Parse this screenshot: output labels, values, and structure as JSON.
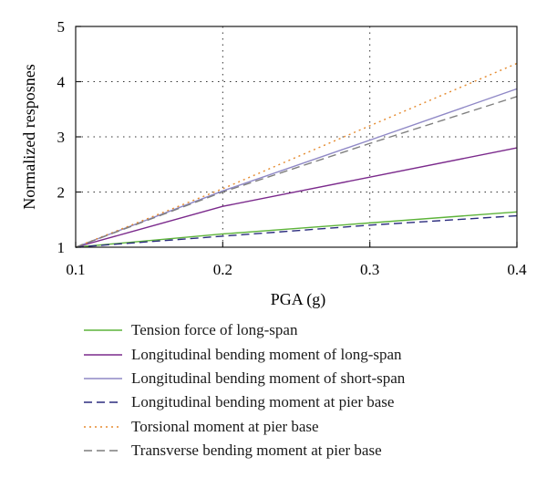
{
  "chart_data": {
    "type": "line",
    "xlabel": "PGA (g)",
    "ylabel": "Normalized resposnes",
    "x": [
      0.1,
      0.2,
      0.3,
      0.4
    ],
    "xticks": [
      "0.1",
      "0.2",
      "0.3",
      "0.4"
    ],
    "yticks": [
      "1",
      "2",
      "3",
      "4",
      "5"
    ],
    "xlim": [
      0.1,
      0.4
    ],
    "ylim": [
      1,
      5
    ],
    "grid": "dotted at x = 0.2, 0.3 and y = 2, 3, 4",
    "legend_position": "below",
    "series": [
      {
        "name": "Tension force of long-span",
        "values": [
          1.0,
          1.24,
          1.44,
          1.64
        ],
        "color": "#5db33a",
        "dash": "solid"
      },
      {
        "name": "Longitudinal bending moment of long-span",
        "values": [
          1.0,
          1.74,
          2.27,
          2.8
        ],
        "color": "#7b2a8c",
        "dash": "solid"
      },
      {
        "name": "Longitudinal bending moment of short-span",
        "values": [
          1.0,
          2.02,
          2.94,
          3.87
        ],
        "color": "#8f88c6",
        "dash": "solid"
      },
      {
        "name": "Longitudinal bending moment at pier base",
        "values": [
          1.0,
          1.2,
          1.4,
          1.57
        ],
        "color": "#2b2c7e",
        "dash": "dashed"
      },
      {
        "name": "Torsional moment at pier base",
        "values": [
          1.0,
          2.06,
          3.2,
          4.33
        ],
        "color": "#e58a2e",
        "dash": "dotted"
      },
      {
        "name": "Transverse bending moment at pier base",
        "values": [
          1.0,
          2.0,
          2.88,
          3.73
        ],
        "color": "#7f7f7f",
        "dash": "dashed"
      }
    ]
  }
}
